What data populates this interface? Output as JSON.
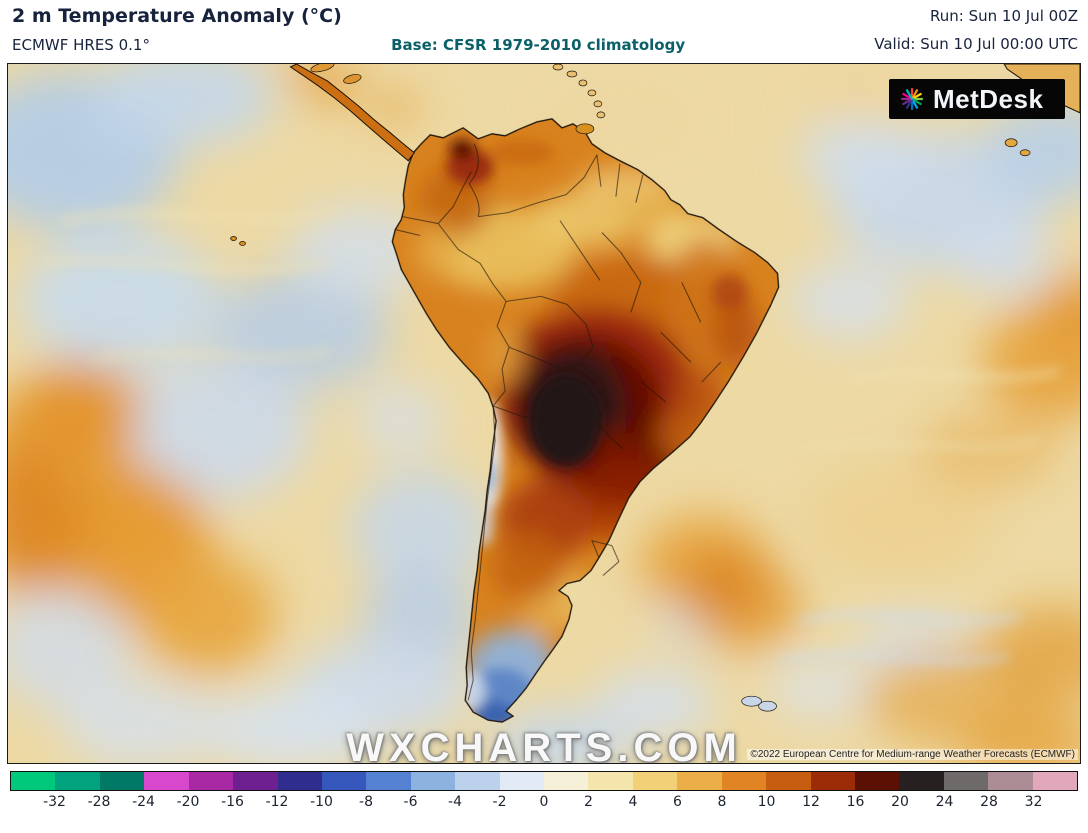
{
  "header": {
    "title": "2 m Temperature Anomaly (°C)",
    "model": "ECMWF HRES 0.1°",
    "base": "Base: CFSR 1979-2010 climatology",
    "run": "Run: Sun 10 Jul 00Z",
    "valid": "Valid: Sun 10 Jul 00:00 UTC"
  },
  "map": {
    "watermark": "WXCHARTS.COM",
    "copyright": "©2022 European Centre for Medium-range Weather Forecasts (ECMWF)",
    "logo_text": "MetDesk"
  },
  "colorbar": {
    "unit": "°C",
    "tick_labels": [
      "-32",
      "-28",
      "-24",
      "-20",
      "-16",
      "-12",
      "-10",
      "-8",
      "-6",
      "-4",
      "-2",
      "0",
      "2",
      "4",
      "6",
      "8",
      "10",
      "12",
      "16",
      "20",
      "24",
      "28",
      "32"
    ],
    "segment_colors": [
      "#00c97c",
      "#00a37e",
      "#007a66",
      "#d848cc",
      "#a929a4",
      "#6f2090",
      "#2f2d8e",
      "#3658bc",
      "#5581d2",
      "#8cb2e0",
      "#bcd2ec",
      "#e2ebf5",
      "#f6f0d8",
      "#f3e5ab",
      "#f1d077",
      "#ecae49",
      "#e08424",
      "#c65d10",
      "#9c2c08",
      "#5c1004",
      "#262020",
      "#6e6a69",
      "#ad8d95",
      "#e0a8ba"
    ]
  }
}
